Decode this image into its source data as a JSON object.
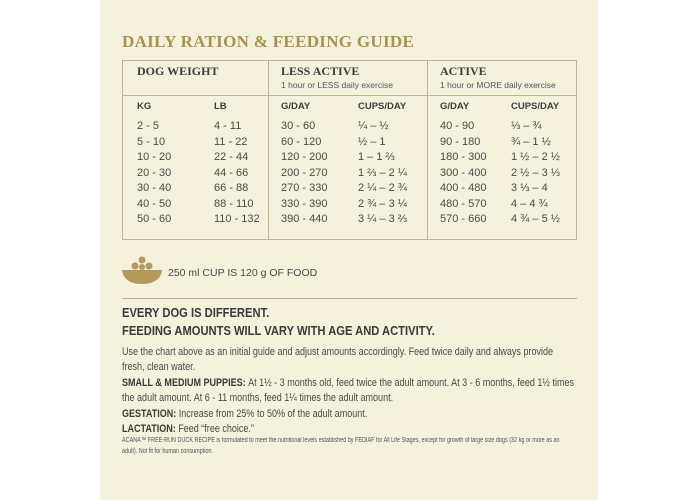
{
  "title": "DAILY RATION & FEEDING GUIDE",
  "table": {
    "groups": [
      {
        "title": "DOG WEIGHT"
      },
      {
        "title": "LESS ACTIVE",
        "subtitle": "1 hour or LESS daily exercise"
      },
      {
        "title": "ACTIVE",
        "subtitle": "1 hour or MORE daily exercise"
      }
    ],
    "columns": [
      "KG",
      "LB",
      "G/DAY",
      "CUPS/DAY",
      "G/DAY",
      "CUPS/DAY"
    ],
    "rows": [
      [
        "2 - 5",
        "4 - 11",
        "30 - 60",
        "¼ – ½",
        "40 - 90",
        "⅓ – ¾"
      ],
      [
        "5 - 10",
        "11 - 22",
        "60 - 120",
        "½ – 1",
        "90 - 180",
        "¾ – 1 ½"
      ],
      [
        "10 - 20",
        "22 - 44",
        "120 - 200",
        "1 – 1 ⅔",
        "180 - 300",
        "1 ½ – 2 ½"
      ],
      [
        "20 - 30",
        "44 - 66",
        "200 - 270",
        "1 ⅔ – 2 ¼",
        "300 - 400",
        "2 ½ – 3 ⅓"
      ],
      [
        "30 - 40",
        "66 - 88",
        "270 - 330",
        "2 ¼ – 2 ¾",
        "400 - 480",
        "3 ⅓ – 4"
      ],
      [
        "40 - 50",
        "88 - 110",
        "330 - 390",
        "2 ¾ – 3 ¼",
        "480 - 570",
        "4 – 4 ¾"
      ],
      [
        "50 - 60",
        "110 - 132",
        "390 - 440",
        "3 ¼ – 3 ⅔",
        "570 - 660",
        "4 ¾ – 5 ½"
      ]
    ]
  },
  "cup_note": "250 ml CUP IS 120 g OF FOOD",
  "headline": [
    "EVERY DOG IS DIFFERENT.",
    "FEEDING AMOUNTS WILL VARY WITH AGE AND ACTIVITY."
  ],
  "paragraphs": [
    {
      "text": "Use the chart above as an initial guide and adjust amounts accordingly. Feed twice daily and always provide fresh, clean water."
    },
    {
      "label": "SMALL & MEDIUM PUPPIES:",
      "text": "At 1½ - 3 months old, feed twice the adult amount. At 3 - 6 months, feed 1½ times the adult amount. At 6 - 11 months, feed 1¼ times the adult amount."
    },
    {
      "label": "GESTATION:",
      "text": "Increase from 25% to 50% of the adult amount."
    },
    {
      "label": "LACTATION:",
      "text": "Feed “free choice.”"
    }
  ],
  "footnote": "ACANA™ FREE-RUN DUCK RECIPE is formulated to meet the nutritional levels established by FEDIAF for All Life Stages, except for growth of large size dogs (32 kg or more as an adult). Not fit for human consumption."
}
